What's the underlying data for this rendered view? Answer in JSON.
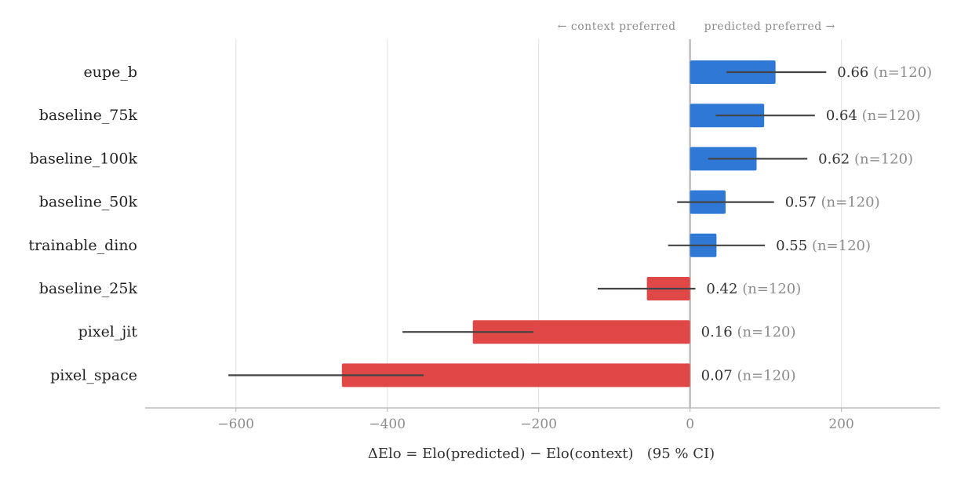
{
  "chart_data": {
    "type": "bar",
    "orientation": "horizontal",
    "xlabel": "ΔElo = Elo(predicted) − Elo(context)   (95 % CI)",
    "xlim": [
      -720,
      330
    ],
    "xticks": [
      -600,
      -400,
      -200,
      0,
      200
    ],
    "xtick_labels": [
      "−600",
      "−400",
      "−200",
      "0",
      "200"
    ],
    "grid": true,
    "direction_labels": {
      "left": "← context preferred",
      "right": "predicted preferred →"
    },
    "colors": {
      "positive": "#2f78d6",
      "negative": "#e04848",
      "errorbar": "#444444",
      "zero_line": "#bbbbbb"
    },
    "categories": [
      "eupe_b",
      "baseline_75k",
      "baseline_100k",
      "baseline_50k",
      "trainable_dino",
      "baseline_25k",
      "pixel_jit",
      "pixel_space"
    ],
    "values": [
      113,
      98,
      88,
      47,
      35,
      -57,
      -287,
      -460
    ],
    "ci_low": [
      48,
      34,
      24,
      -17,
      -29,
      -122,
      -380,
      -610
    ],
    "ci_high": [
      180,
      165,
      155,
      111,
      99,
      7,
      -207,
      -352
    ],
    "win_rate": [
      "0.66",
      "0.64",
      "0.62",
      "0.57",
      "0.55",
      "0.42",
      "0.16",
      "0.07"
    ],
    "n_labels": [
      "(n=120)",
      "(n=120)",
      "(n=120)",
      "(n=120)",
      "(n=120)",
      "(n=120)",
      "(n=120)",
      "(n=120)"
    ]
  }
}
